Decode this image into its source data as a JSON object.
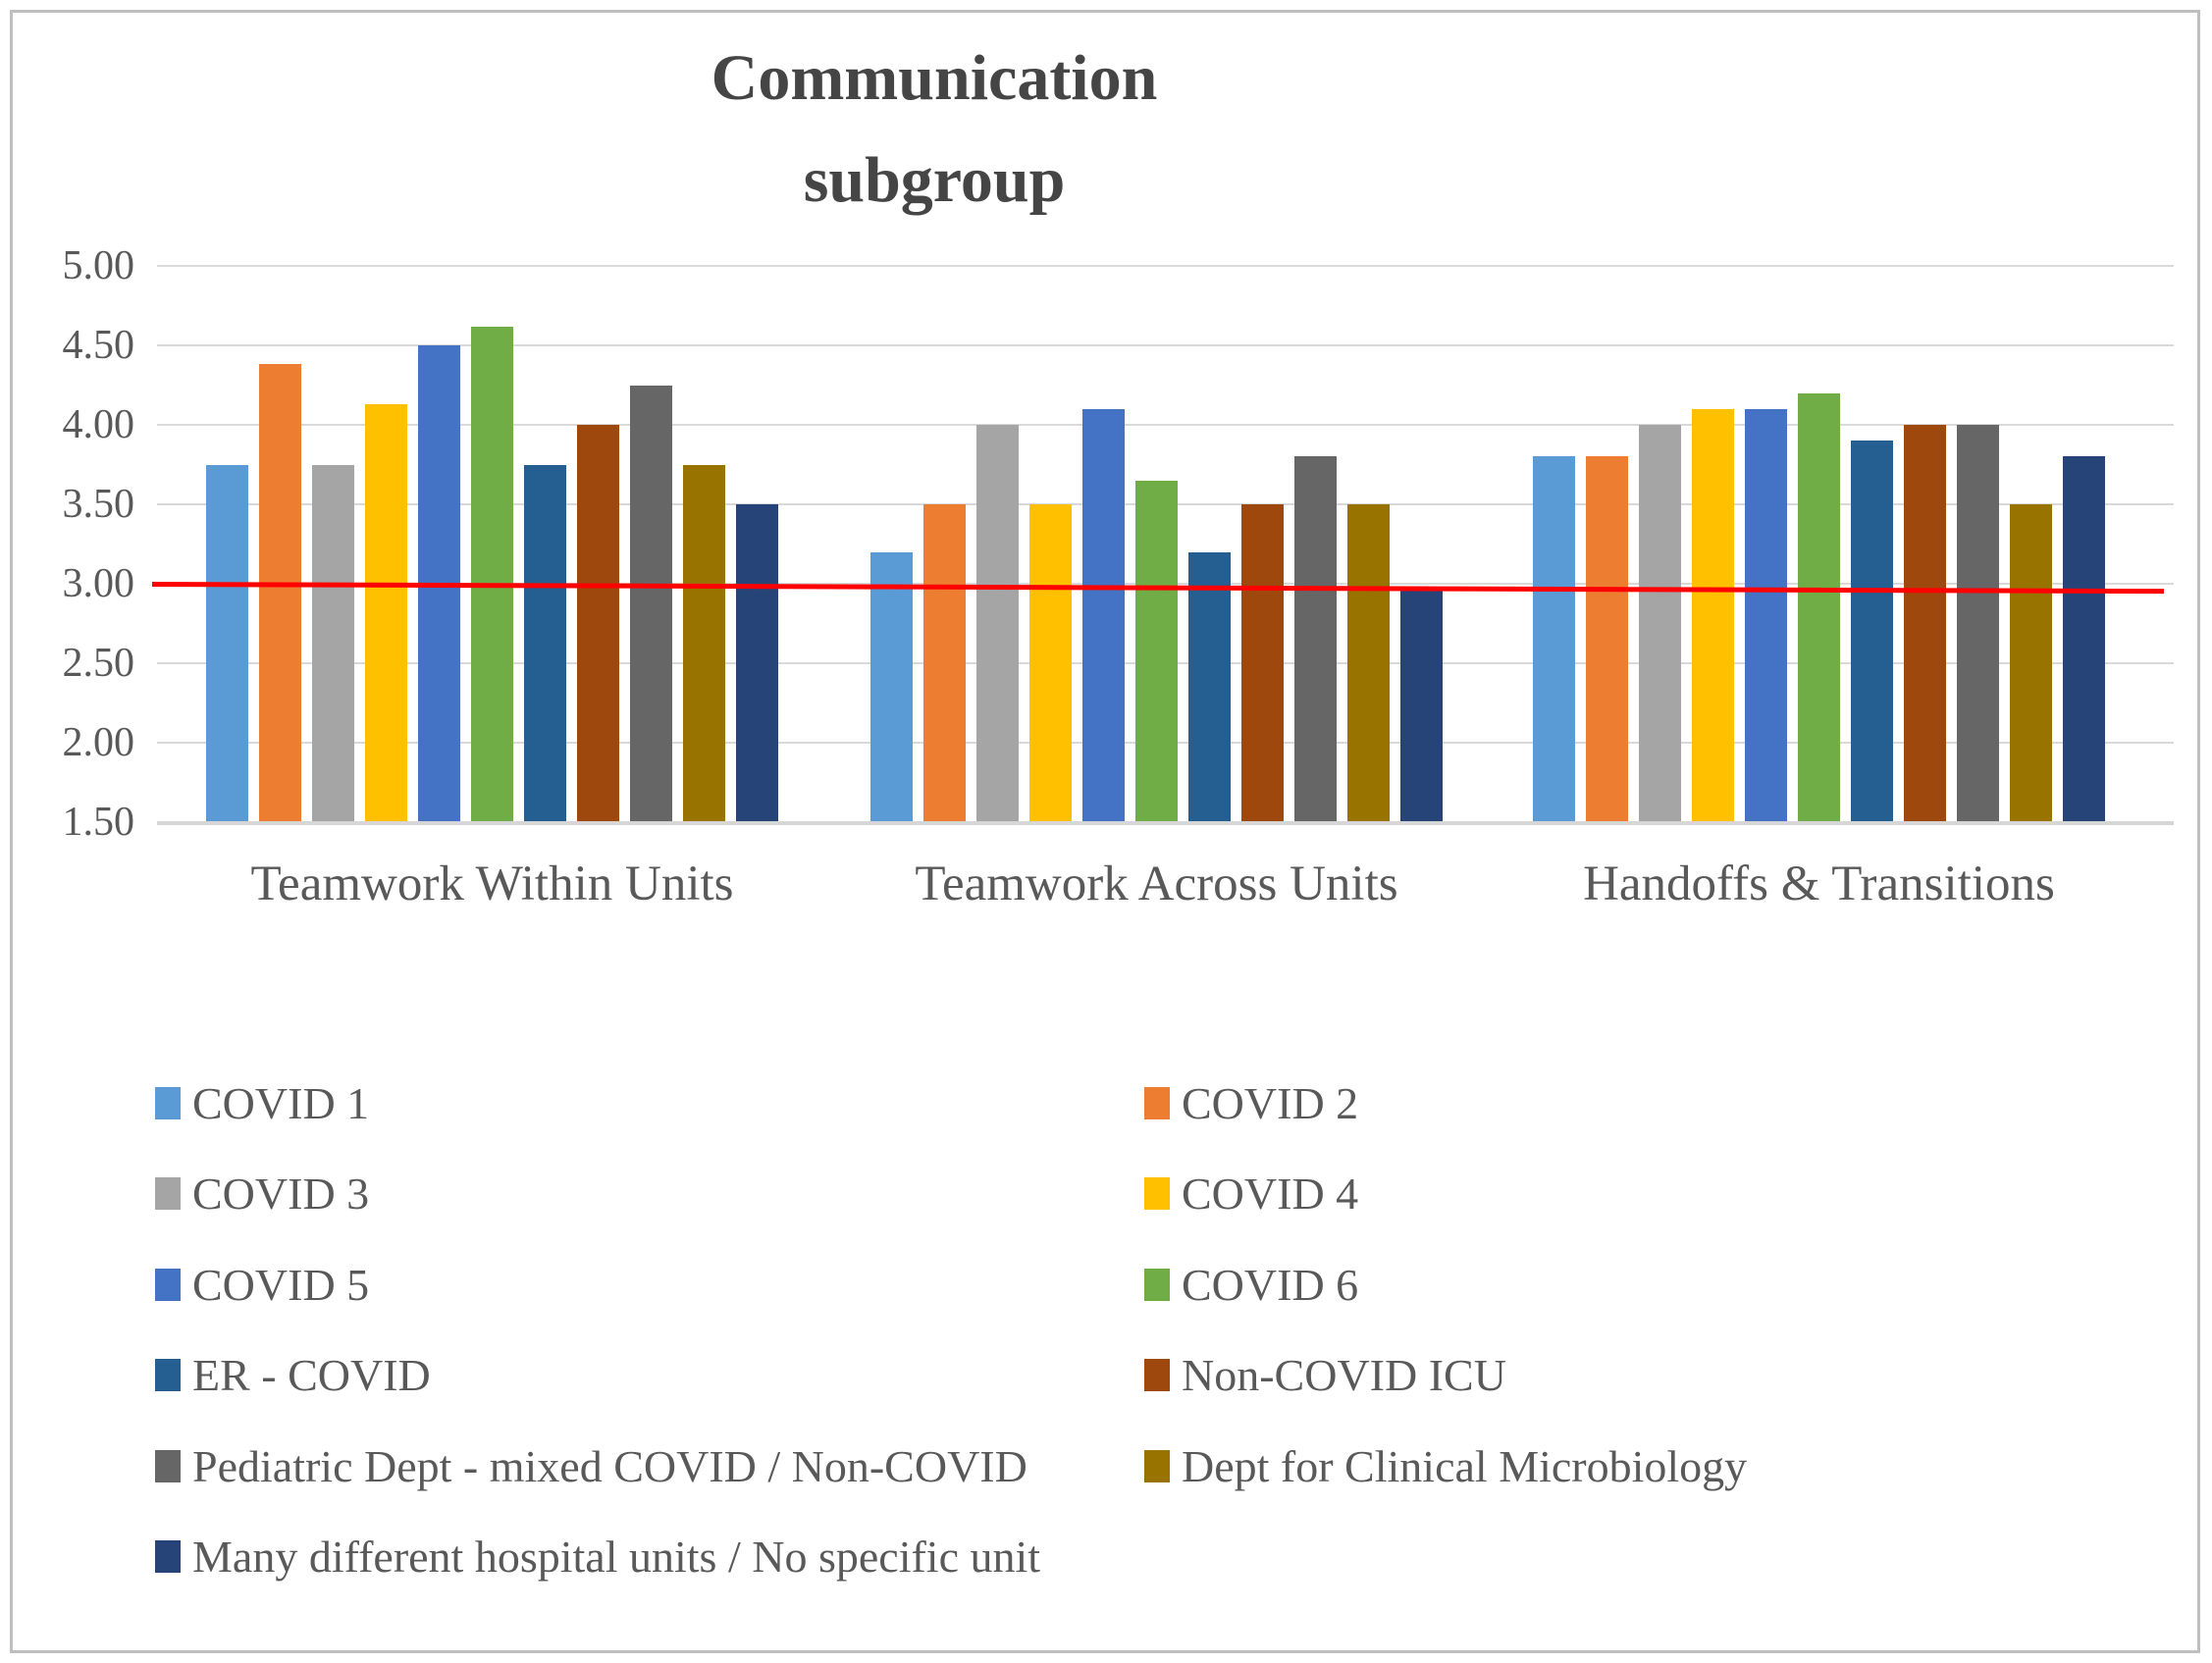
{
  "figure": {
    "title_lines": [
      "Communication",
      "subgroup"
    ]
  },
  "chart_data": {
    "type": "bar",
    "title": "Communication subgroup",
    "categories": [
      "Teamwork Within Units",
      "Teamwork Across Units",
      "Handoffs & Transitions"
    ],
    "series": [
      {
        "name": "COVID 1",
        "color": "#5B9BD5",
        "values": [
          3.75,
          3.2,
          3.8
        ]
      },
      {
        "name": "COVID 2",
        "color": "#ED7D31",
        "values": [
          4.38,
          3.5,
          3.8
        ]
      },
      {
        "name": "COVID 3",
        "color": "#A5A5A5",
        "values": [
          3.75,
          4.0,
          4.0
        ]
      },
      {
        "name": "COVID 4",
        "color": "#FFC000",
        "values": [
          4.13,
          3.5,
          4.1
        ]
      },
      {
        "name": "COVID 5",
        "color": "#4472C4",
        "values": [
          4.5,
          4.1,
          4.1
        ]
      },
      {
        "name": "COVID  6",
        "color": "#70AD47",
        "values": [
          4.62,
          3.65,
          4.2
        ]
      },
      {
        "name": "ER - COVID",
        "color": "#255E91",
        "values": [
          3.75,
          3.2,
          3.9
        ]
      },
      {
        "name": "Non-COVID ICU",
        "color": "#9E480E",
        "values": [
          4.0,
          3.5,
          4.0
        ]
      },
      {
        "name": "Pediatric Dept - mixed COVID / Non-COVID",
        "color": "#666666",
        "values": [
          4.25,
          3.8,
          4.0
        ]
      },
      {
        "name": "Dept for Clinical Microbiology",
        "color": "#997300",
        "values": [
          3.75,
          3.5,
          3.5
        ]
      },
      {
        "name": "Many different hospital units / No specific unit",
        "color": "#264478",
        "values": [
          3.5,
          2.98,
          3.8
        ]
      }
    ],
    "y_axis": {
      "min": 1.5,
      "max": 5.0,
      "step": 0.5,
      "tick_labels": [
        "5.00",
        "4.50",
        "4.00",
        "3.50",
        "3.00",
        "2.50",
        "2.00",
        "1.50"
      ]
    },
    "reference_line": {
      "value": 3.0,
      "color": "#FF0000"
    },
    "grid": true,
    "legend_position": "bottom-two-columns",
    "legend_rows": [
      [
        0,
        1
      ],
      [
        2,
        3
      ],
      [
        4,
        5
      ],
      [
        6,
        7
      ],
      [
        8,
        9
      ],
      [
        10,
        null
      ]
    ]
  }
}
